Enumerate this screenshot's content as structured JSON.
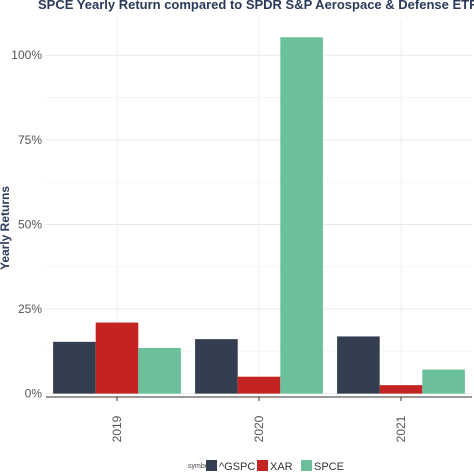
{
  "chart_data": {
    "type": "bar",
    "title": "SPCE Yearly Return compared to SPDR S&P Aerospace & Defense ETF",
    "xlabel": "",
    "ylabel": "Yearly Returns",
    "categories": [
      "2019",
      "2020",
      "2021"
    ],
    "series": [
      {
        "name": "^GSPC",
        "color": "#333f50",
        "values": [
          0.153,
          0.161,
          0.169
        ]
      },
      {
        "name": "XAR",
        "color": "#c42323",
        "values": [
          0.21,
          0.05,
          0.025
        ]
      },
      {
        "name": "SPCE",
        "color": "#6bbf9a",
        "values": [
          0.135,
          1.053,
          0.071
        ]
      }
    ],
    "ylim": [
      -0.01,
      1.11
    ],
    "yticks": [
      0,
      0.25,
      0.5,
      0.75,
      1.0
    ],
    "ytick_labels": [
      "0%",
      "25%",
      "50%",
      "75%",
      "100%"
    ],
    "grid": true,
    "legend": {
      "title": "symbol",
      "position": "bottom"
    }
  }
}
